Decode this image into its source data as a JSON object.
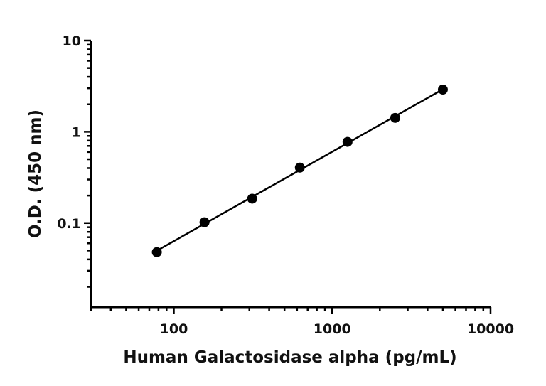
{
  "chart_data": {
    "type": "scatter",
    "title": "",
    "xlabel": "Human Galactosidase alpha (pg/mL)",
    "ylabel": "O.D. (450 nm)",
    "xscale": "log",
    "yscale": "log",
    "xlim": [
      30,
      10000
    ],
    "ylim": [
      0.012,
      10
    ],
    "x_ticks": [
      {
        "value": 100,
        "label": "100"
      },
      {
        "value": 1000,
        "label": "1000"
      },
      {
        "value": 10000,
        "label": "10000"
      }
    ],
    "y_ticks": [
      {
        "value": 0.1,
        "label": "0.1"
      },
      {
        "value": 1,
        "label": "1"
      },
      {
        "value": 10,
        "label": "10"
      }
    ],
    "grid": false,
    "legend": "none",
    "colors": {
      "marker": "#000000",
      "line": "#000000",
      "axis": "#000000"
    },
    "series": [
      {
        "x": [
          78.125,
          156.25,
          312.5,
          625,
          1250,
          2500,
          5000
        ],
        "y": [
          0.048,
          0.102,
          0.185,
          0.405,
          0.775,
          1.42,
          2.9
        ],
        "fit_line": true
      }
    ]
  }
}
